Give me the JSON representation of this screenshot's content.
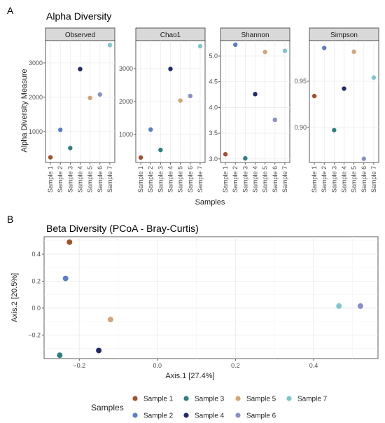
{
  "panel_a": {
    "letter": "A",
    "title": "Alpha Diversity",
    "ylabel": "Alpha Diversity Measure",
    "xlabel": "Samples"
  },
  "panel_b": {
    "letter": "B",
    "title": "Beta Diversity (PCoA - Bray-Curtis)"
  },
  "legend": {
    "title": "Samples",
    "entries": [
      "Sample 1",
      "Sample 2",
      "Sample 3",
      "Sample 4",
      "Sample 5",
      "Sample 6",
      "Sample 7"
    ]
  },
  "colors": {
    "Sample 1": "#a0522d",
    "Sample 2": "#5b7fc7",
    "Sample 3": "#2f7f7f",
    "Sample 4": "#232a6b",
    "Sample 5": "#d1a77a",
    "Sample 6": "#8a8fc4",
    "Sample 7": "#7fc6cc",
    "strip_fill": "#d9d9d9",
    "grid": "#ebebeb"
  },
  "chart_data": [
    {
      "type": "scatter",
      "title": "Alpha Diversity",
      "ylabel": "Alpha Diversity Measure",
      "xlabel": "Samples",
      "categories": [
        "Sample 1",
        "Sample 2",
        "Sample 3",
        "Sample 4",
        "Sample 5",
        "Sample 6",
        "Sample 7"
      ],
      "facets": [
        {
          "name": "Observed",
          "values": [
            250,
            1050,
            520,
            2820,
            1980,
            2080,
            3520
          ],
          "ylim": [
            100,
            3650
          ],
          "yticks": [
            1000,
            2000,
            3000
          ]
        },
        {
          "name": "Chao1",
          "values": [
            300,
            1150,
            530,
            2990,
            2030,
            2170,
            3680
          ],
          "ylim": [
            150,
            3850
          ],
          "yticks": [
            1000,
            2000,
            3000
          ]
        },
        {
          "name": "Shannon",
          "values": [
            3.09,
            5.22,
            3.01,
            4.26,
            5.08,
            3.76,
            5.1
          ],
          "ylim": [
            2.93,
            5.3
          ],
          "yticks": [
            3.0,
            3.5,
            4.0,
            4.5,
            5.0
          ]
        },
        {
          "name": "Simpson",
          "values": [
            0.934,
            0.986,
            0.897,
            0.942,
            0.982,
            0.866,
            0.954
          ],
          "ylim": [
            0.862,
            0.994
          ],
          "yticks": [
            0.9,
            0.95
          ]
        }
      ]
    },
    {
      "type": "scatter",
      "title": "Beta Diversity (PCoA - Bray-Curtis)",
      "xlabel": "Axis.1   [27.4%]",
      "ylabel": "Axis.2   [20.5%]",
      "xlim": [
        -0.29,
        0.565
      ],
      "ylim": [
        -0.375,
        0.53
      ],
      "xticks": [
        -0.2,
        0.0,
        0.2,
        0.4
      ],
      "yticks": [
        -0.2,
        0.0,
        0.2,
        0.4
      ],
      "xtick_labels": [
        "−0.2",
        "0.0",
        "0.2",
        "0.4"
      ],
      "ytick_labels": [
        "−0.2",
        "0.0",
        "0.2",
        "0.4"
      ],
      "points": [
        {
          "sample": "Sample 1",
          "x": -0.225,
          "y": 0.49
        },
        {
          "sample": "Sample 2",
          "x": -0.235,
          "y": 0.22
        },
        {
          "sample": "Sample 3",
          "x": -0.25,
          "y": -0.35
        },
        {
          "sample": "Sample 4",
          "x": -0.15,
          "y": -0.315
        },
        {
          "sample": "Sample 5",
          "x": -0.12,
          "y": -0.085
        },
        {
          "sample": "Sample 6",
          "x": 0.52,
          "y": 0.015
        },
        {
          "sample": "Sample 7",
          "x": 0.465,
          "y": 0.015
        }
      ],
      "legend_title": "Samples",
      "legend_placement": "bottom"
    }
  ]
}
